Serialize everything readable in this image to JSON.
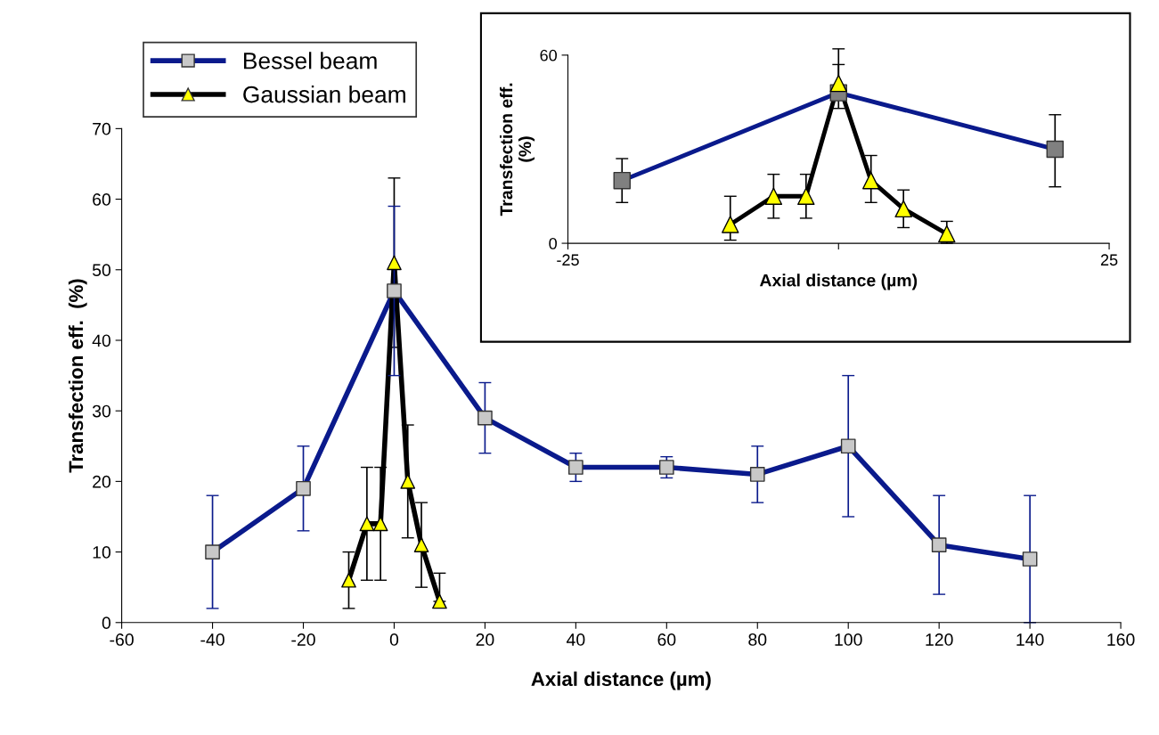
{
  "chart_data": [
    {
      "type": "line",
      "xlabel": "Axial distance (µm)",
      "ylabel": "Transfection eff.  (%)",
      "xlim": [
        -60,
        160
      ],
      "xticks": [
        -60,
        -40,
        -20,
        0,
        20,
        40,
        60,
        80,
        100,
        120,
        140,
        160
      ],
      "ylim": [
        0,
        70
      ],
      "yticks": [
        0,
        10,
        20,
        30,
        40,
        50,
        60,
        70
      ],
      "grid": false,
      "legend": "top left",
      "line_style": "solid",
      "series": [
        {
          "name": "Bessel beam",
          "color": "#0a1a8c",
          "marker": "square",
          "colors": [
            "#c8c8c8",
            "#c8c8c8",
            "#c8c8c8",
            "#c8c8c8",
            "#c8c8c8",
            "#c8c8c8",
            "#c8c8c8",
            "#c8c8c8",
            "#c8c8c8",
            "#c8c8c8"
          ],
          "x": [
            -40,
            -20,
            0,
            20,
            40,
            60,
            80,
            100,
            120,
            140
          ],
          "values": [
            10,
            19,
            47,
            29,
            22,
            22,
            21,
            25,
            11,
            9
          ],
          "errors": [
            [
              2,
              18
            ],
            [
              13,
              25
            ],
            [
              35,
              59
            ],
            [
              24,
              34
            ],
            [
              20,
              24
            ],
            [
              20.5,
              23.5
            ],
            [
              17,
              25
            ],
            [
              15,
              35
            ],
            [
              4,
              18
            ],
            [
              0,
              18
            ]
          ]
        },
        {
          "name": "Gaussian beam",
          "color": "#000000",
          "marker": "triangle",
          "colors": [
            "#ffff00",
            "#ffff00",
            "#ffff00",
            "#ffff00",
            "#ffff00",
            "#ffff00",
            "#ffff00"
          ],
          "x": [
            -10,
            -6,
            -3,
            0,
            3,
            6,
            10
          ],
          "values": [
            6,
            14,
            14,
            51,
            20,
            11,
            3
          ],
          "errors": [
            [
              2,
              10
            ],
            [
              6,
              22
            ],
            [
              6,
              22
            ],
            [
              39,
              63
            ],
            [
              12,
              28
            ],
            [
              5,
              17
            ],
            [
              3,
              7
            ]
          ]
        }
      ]
    },
    {
      "type": "line",
      "xlabel": "Axial distance (µm)",
      "ylabel": "Transfection eff.\n(%)",
      "xlim": [
        -25,
        25
      ],
      "xticks": [
        -25,
        {
          "value": 0,
          "label": null
        },
        25
      ],
      "ylim": [
        0,
        60
      ],
      "yticks": [
        0,
        60
      ],
      "grid": false,
      "line_style": "solid",
      "series": [
        {
          "color": "#0a1a8c",
          "marker": "square",
          "colors": [
            "#808080",
            "#808080",
            "#808080"
          ],
          "x": [
            -20,
            0,
            20
          ],
          "values": [
            20,
            48,
            30
          ],
          "errors": [
            [
              13,
              27
            ],
            [
              48,
              62
            ],
            [
              18,
              41
            ]
          ]
        },
        {
          "color": "#000000",
          "marker": "triangle",
          "colors": [
            "#ffff00",
            "#ffff00",
            "#ffff00",
            "#ffff00",
            "#ffff00",
            "#ffff00",
            "#ffff00"
          ],
          "x": [
            -10,
            -6,
            -3,
            0,
            3,
            6,
            10
          ],
          "values": [
            6,
            15,
            15,
            51,
            20,
            11,
            3
          ],
          "errors": [
            [
              1,
              15
            ],
            [
              8,
              22
            ],
            [
              8,
              22
            ],
            [
              43,
              57
            ],
            [
              13,
              28
            ],
            [
              5,
              17
            ],
            [
              0,
              7
            ]
          ]
        }
      ]
    }
  ]
}
